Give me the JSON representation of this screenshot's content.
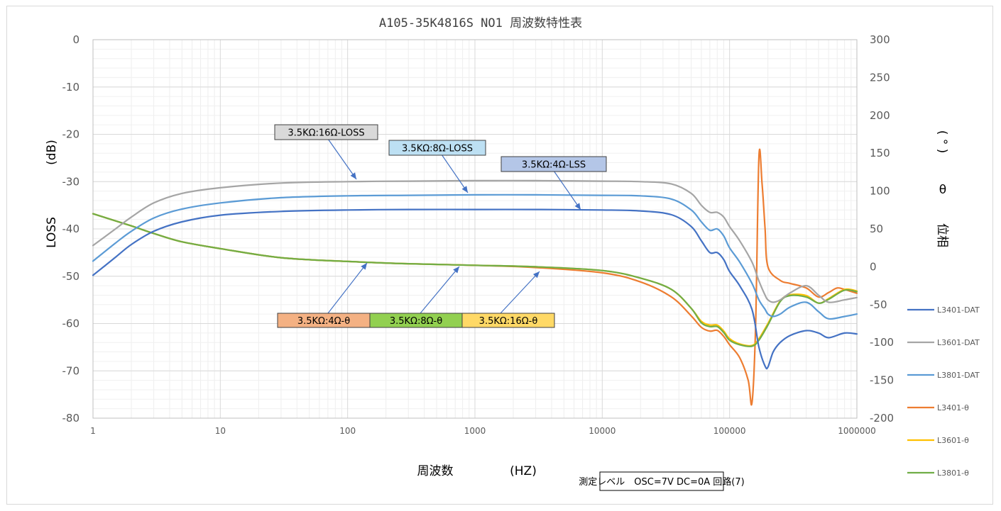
{
  "chart_data": {
    "type": "line",
    "title": "A105-35K4816S NO1 周波数特性表",
    "xlabel": "周波数",
    "xunit": "(HZ)",
    "ylabel": "LOSS",
    "yunit": "(dB)",
    "y2label": "位相",
    "y2symbol": "θ",
    "y2unit": "( ° )",
    "xscale": "log",
    "xlim": [
      1,
      1000000
    ],
    "ylim": [
      -80,
      0
    ],
    "y2lim": [
      -200,
      300
    ],
    "x_ticks": [
      "1",
      "10",
      "100",
      "1000",
      "10000",
      "100000",
      "1000000"
    ],
    "y_ticks": [
      "0",
      "-10",
      "-20",
      "-30",
      "-40",
      "-50",
      "-60",
      "-70",
      "-80"
    ],
    "y2_ticks": [
      "300",
      "250",
      "200",
      "150",
      "100",
      "50",
      "0",
      "-50",
      "-100",
      "-150",
      "-200"
    ],
    "grid": true,
    "legend_position": "right",
    "series": [
      {
        "name": "L3401-DAT",
        "axis": "left",
        "color": "#4472c4",
        "x": [
          1,
          1.5,
          2,
          3,
          5,
          10,
          30,
          100,
          300,
          1000,
          3000,
          10000,
          20000,
          35000,
          50000,
          60000,
          70000,
          80000,
          90000,
          100000,
          120000,
          150000,
          170000,
          190000,
          200000,
          220000,
          250000,
          300000,
          400000,
          500000,
          600000,
          800000,
          1000000
        ],
        "y": [
          -49.8,
          -46,
          -43.3,
          -40.5,
          -38.5,
          -37.1,
          -36.3,
          -36,
          -35.9,
          -35.9,
          -35.9,
          -36,
          -36.2,
          -37,
          -39.5,
          -42.5,
          -45,
          -45,
          -46.5,
          -49,
          -52,
          -57,
          -65,
          -69,
          -69.2,
          -66,
          -64,
          -62.5,
          -61.5,
          -62,
          -63,
          -62,
          -62.2
        ]
      },
      {
        "name": "L3601-DAT",
        "axis": "left",
        "color": "#a5a5a5",
        "x": [
          1,
          1.5,
          2,
          3,
          5,
          10,
          30,
          100,
          300,
          1000,
          3000,
          10000,
          20000,
          35000,
          50000,
          60000,
          70000,
          80000,
          90000,
          100000,
          120000,
          150000,
          170000,
          190000,
          200000,
          220000,
          250000,
          300000,
          400000,
          500000,
          600000,
          800000,
          1000000
        ],
        "y": [
          -43.5,
          -40,
          -37.5,
          -34.5,
          -32.5,
          -31.3,
          -30.3,
          -30,
          -29.9,
          -29.8,
          -29.8,
          -29.9,
          -30,
          -30.5,
          -32.5,
          -35,
          -36.5,
          -36.5,
          -37.5,
          -39.5,
          -42.5,
          -47,
          -51,
          -54,
          -55,
          -55.5,
          -55,
          -53.5,
          -52,
          -54,
          -55.5,
          -55,
          -54.5
        ]
      },
      {
        "name": "L3801-DAT",
        "axis": "left",
        "color": "#5b9bd5",
        "x": [
          1,
          1.5,
          2,
          3,
          5,
          10,
          30,
          100,
          300,
          1000,
          3000,
          10000,
          20000,
          35000,
          50000,
          60000,
          70000,
          80000,
          90000,
          100000,
          120000,
          150000,
          170000,
          190000,
          200000,
          220000,
          250000,
          300000,
          400000,
          500000,
          600000,
          800000,
          1000000
        ],
        "y": [
          -46.8,
          -43,
          -40.5,
          -37.7,
          -35.8,
          -34.5,
          -33.4,
          -33,
          -32.9,
          -32.8,
          -32.8,
          -32.9,
          -33,
          -33.7,
          -36,
          -38.5,
          -40.3,
          -40,
          -41.5,
          -44,
          -47,
          -51.5,
          -55,
          -57,
          -58,
          -58.5,
          -58,
          -56.5,
          -55.5,
          -57.5,
          -59,
          -58.5,
          -58
        ]
      },
      {
        "name": "L3401-θ",
        "axis": "right",
        "color": "#ed7d31",
        "x": [
          1,
          2,
          3,
          5,
          10,
          30,
          100,
          300,
          1000,
          3000,
          10000,
          20000,
          35000,
          50000,
          60000,
          70000,
          80000,
          90000,
          100000,
          120000,
          140000,
          150000,
          160000,
          170000,
          180000,
          190000,
          200000,
          250000,
          300000,
          400000,
          500000,
          600000,
          700000,
          800000,
          1000000
        ],
        "y": [
          70,
          54,
          44,
          33,
          24,
          12,
          7,
          4,
          2,
          -1,
          -8,
          -20,
          -40,
          -65,
          -80,
          -85,
          -84,
          -92,
          -103,
          -120,
          -150,
          -180,
          -80,
          145,
          110,
          50,
          0,
          -18,
          -22,
          -28,
          -40,
          -34,
          -28,
          -30,
          -35
        ]
      },
      {
        "name": "L3601-θ",
        "axis": "right",
        "color": "#ffc000",
        "x": [
          1,
          2,
          3,
          5,
          10,
          30,
          100,
          300,
          1000,
          3000,
          10000,
          20000,
          35000,
          50000,
          60000,
          70000,
          80000,
          90000,
          100000,
          120000,
          150000,
          170000,
          200000,
          250000,
          300000,
          400000,
          500000,
          600000,
          800000,
          1000000
        ],
        "y": [
          70,
          54,
          44,
          33,
          24,
          12,
          7,
          4,
          2,
          0,
          -5,
          -15,
          -30,
          -55,
          -72,
          -77,
          -77,
          -85,
          -95,
          -102,
          -104,
          -95,
          -75,
          -45,
          -37,
          -38,
          -48,
          -42,
          -30,
          -32
        ]
      },
      {
        "name": "L3801-θ",
        "axis": "right",
        "color": "#70ad47",
        "x": [
          1,
          2,
          3,
          5,
          10,
          30,
          100,
          300,
          1000,
          3000,
          10000,
          20000,
          35000,
          50000,
          60000,
          70000,
          80000,
          90000,
          100000,
          120000,
          150000,
          170000,
          200000,
          250000,
          300000,
          400000,
          500000,
          600000,
          800000,
          1000000
        ],
        "y": [
          70,
          54,
          44,
          33,
          24,
          12,
          7,
          4,
          2,
          0,
          -5,
          -15,
          -30,
          -55,
          -74,
          -79,
          -79,
          -87,
          -97,
          -103,
          -105,
          -97,
          -77,
          -46,
          -38,
          -40,
          -48,
          -43,
          -31,
          -33
        ]
      }
    ],
    "callouts": [
      {
        "text": "3.5KΩ:16Ω-LOSS",
        "fill": "#d9d9d9",
        "target_series": 1
      },
      {
        "text": "3.5KΩ:8Ω-LOSS",
        "fill": "#bde0f3",
        "target_series": 2
      },
      {
        "text": "3.5KΩ:4Ω-LSS",
        "fill": "#b4c6e7",
        "target_series": 0
      },
      {
        "text": "3.5KΩ:4Ω-θ",
        "fill": "#f4b183",
        "target_series": 3
      },
      {
        "text": "3.5KΩ:8Ω-θ",
        "fill": "#92d050",
        "target_series": 5
      },
      {
        "text": "3.5KΩ:16Ω-θ",
        "fill": "#ffd966",
        "target_series": 4
      }
    ],
    "note": "測定レベル　OSC=7V  DC=0A  回路(7)"
  }
}
